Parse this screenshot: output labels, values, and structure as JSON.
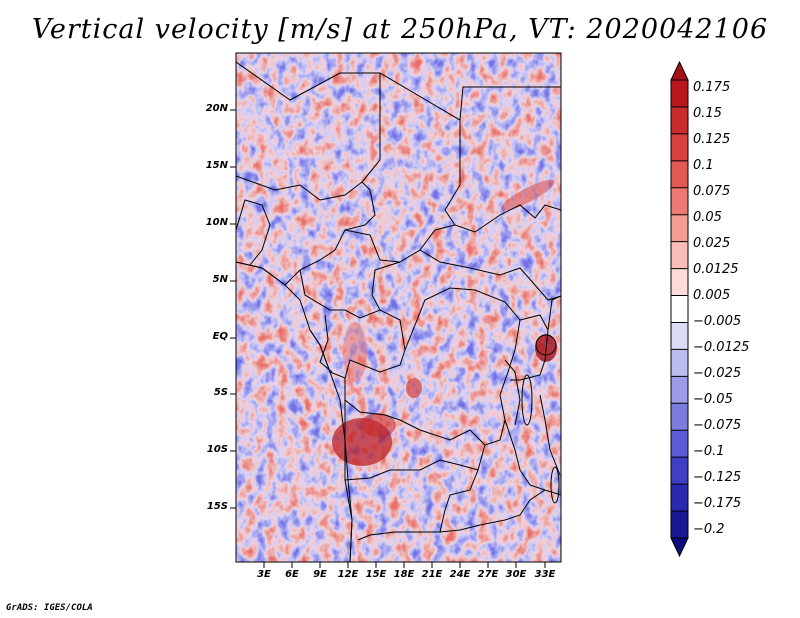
{
  "title": "Vertical velocity [m/s] at 250hPa, VT: 2020042106",
  "latitude_labels": [
    "20N",
    "15N",
    "10N",
    "5N",
    "EQ",
    "5S",
    "10S",
    "15S"
  ],
  "longitude_labels": [
    "3E",
    "6E",
    "9E",
    "12E",
    "15E",
    "18E",
    "21E",
    "24E",
    "27E",
    "30E",
    "33E"
  ],
  "colorbar": {
    "labels": [
      "0.175",
      "0.15",
      "0.125",
      "0.1",
      "0.075",
      "0.05",
      "0.025",
      "0.0125",
      "0.005",
      "−0.005",
      "−0.0125",
      "−0.025",
      "−0.05",
      "−0.075",
      "−0.1",
      "−0.125",
      "−0.175",
      "−0.2"
    ],
    "colors": [
      "#a50f15",
      "#b8171c",
      "#c92a2a",
      "#d94040",
      "#e35a55",
      "#ec7a72",
      "#f49b94",
      "#f8bdb8",
      "#fbdcd9",
      "#ffffff",
      "#dcdcf6",
      "#bcbcf0",
      "#9c9ce8",
      "#7c7cdf",
      "#5c5cd6",
      "#3f3fc6",
      "#2a2ab0",
      "#191996",
      "#0c0c7e"
    ]
  },
  "credit": "GrADS: IGES/COLA"
}
